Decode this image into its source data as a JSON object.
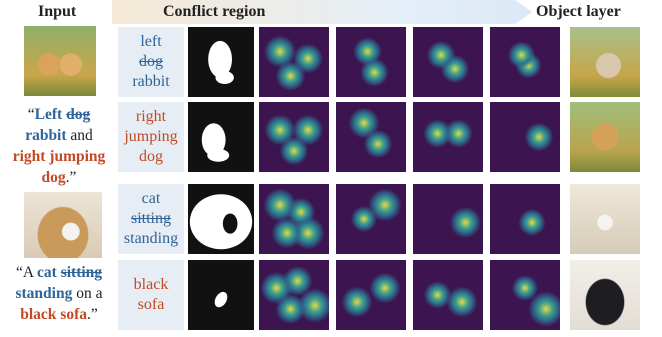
{
  "headers": {
    "input": "Input",
    "conflict": "Conflict region",
    "object": "Object layer"
  },
  "captions": [
    [
      [
        {
          "text": "“"
        },
        {
          "text": "Left",
          "color": "#2f6496",
          "bold": true,
          "attach": true
        },
        {
          "text": "dog",
          "color": "#2f6496",
          "bold": true,
          "strike": true
        }
      ],
      [
        {
          "text": "rabbit",
          "color": "#2f6496",
          "bold": true
        },
        {
          "text": "and"
        }
      ],
      [
        {
          "text": "right jumping",
          "color": "#c24a26",
          "bold": true
        }
      ],
      [
        {
          "text": "dog",
          "color": "#c24a26",
          "bold": true
        },
        {
          "text": ".”",
          "attach": true
        }
      ]
    ],
    [
      [
        {
          "text": "“A"
        },
        {
          "text": "cat",
          "color": "#2f6496",
          "bold": true
        },
        {
          "text": "sitting",
          "color": "#2f6496",
          "bold": true,
          "strike": true
        }
      ],
      [
        {
          "text": "standing",
          "color": "#2f6496",
          "bold": true
        },
        {
          "text": "on a"
        }
      ],
      [
        {
          "text": "black sofa",
          "color": "#c24a26",
          "bold": true
        },
        {
          "text": ".”",
          "attach": true
        }
      ]
    ]
  ],
  "rows": [
    {
      "color": "#2f6496",
      "lines": [
        {
          "text": "left"
        },
        {
          "text": "dog",
          "strike": true
        },
        {
          "text": "rabbit"
        }
      ]
    },
    {
      "color": "#c24a26",
      "lines": [
        {
          "text": "right"
        },
        {
          "text": "jumping"
        },
        {
          "text": "dog"
        }
      ]
    },
    {
      "color": "#2f6496",
      "lines": [
        {
          "text": "cat"
        },
        {
          "text": "sitting",
          "strike": true
        },
        {
          "text": "standing"
        }
      ]
    },
    {
      "color": "#c24a26",
      "lines": [
        {
          "text": "black"
        },
        {
          "text": "sofa"
        }
      ]
    }
  ]
}
